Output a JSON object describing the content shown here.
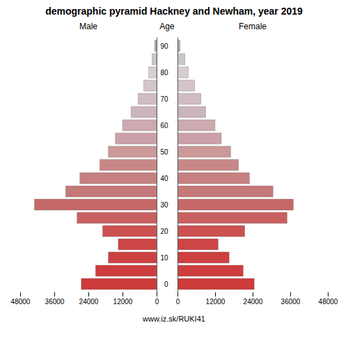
{
  "chart_data": {
    "type": "bar",
    "orientation": "horizontal",
    "title": "demographic pyramid Hackney and Newham, year 2019",
    "y_label": "Age",
    "annotations": [
      "www.iz.sk/RUKI41"
    ],
    "categories": [
      "0",
      null,
      "10",
      null,
      "20",
      null,
      "30",
      null,
      "40",
      null,
      "50",
      null,
      "60",
      null,
      "70",
      null,
      "80",
      null,
      "90"
    ],
    "colors": [
      "#cd3b3b",
      "#cd3d3d",
      "#cd4040",
      "#cd4545",
      "#cc5050",
      "#c96060",
      "#c56868",
      "#c57878",
      "#c58080",
      "#c88888",
      "#cc9898",
      "#cca0a8",
      "#ccaab0",
      "#ccb4bc",
      "#d0bcc4",
      "#d4c4cc",
      "#d8ccd4",
      "#c8c8c8",
      "#aaaaaa"
    ],
    "series": [
      {
        "name": "Male",
        "values": [
          26500,
          21500,
          17000,
          13500,
          19000,
          28000,
          43000,
          32000,
          27000,
          20000,
          17000,
          14500,
          12000,
          9000,
          6500,
          4500,
          2800,
          1600,
          700
        ]
      },
      {
        "name": "Female",
        "values": [
          24500,
          21000,
          16500,
          13000,
          21500,
          35000,
          37000,
          30500,
          23000,
          19500,
          17000,
          14000,
          12000,
          9000,
          7500,
          5500,
          3500,
          2400,
          800
        ]
      }
    ],
    "xlim": [
      0,
      48000
    ],
    "xticks": [
      0,
      12000,
      24000,
      36000,
      48000
    ],
    "grid": false
  }
}
